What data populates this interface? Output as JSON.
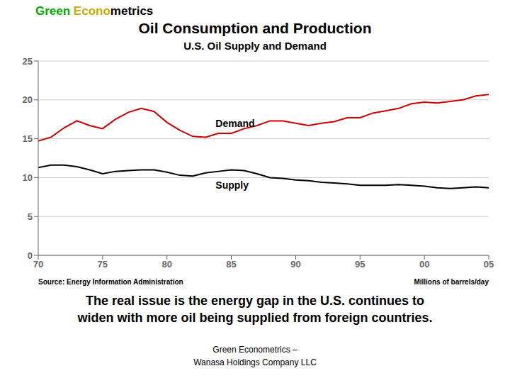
{
  "chart_data": {
    "type": "line",
    "title": "Oil Consumption and Production",
    "subtitle": "U.S. Oil Supply and Demand",
    "header": [
      {
        "text": "Green ",
        "color": "#00aa00"
      },
      {
        "text": "Econo",
        "color": "#ccaa00"
      },
      {
        "text": "metrics",
        "color": "#000000"
      }
    ],
    "source": "Source: Energy Information Administration",
    "unit": "Millions of barrels/day",
    "caption": [
      "The real issue is the energy gap in the U.S. continues to",
      "widen with more oil being supplied from foreign countries."
    ],
    "footer": [
      "Green Econometrics –",
      "Wanasa Holdings Company LLC"
    ],
    "x": [
      70,
      71,
      72,
      73,
      74,
      75,
      76,
      77,
      78,
      79,
      80,
      81,
      82,
      83,
      84,
      85,
      86,
      87,
      88,
      89,
      90,
      91,
      92,
      93,
      94,
      95,
      96,
      97,
      98,
      99,
      100,
      101,
      102,
      103,
      104,
      105
    ],
    "series": [
      {
        "color": "#cc0000",
        "values": [
          14.7,
          15.2,
          16.4,
          17.3,
          16.7,
          16.3,
          17.5,
          18.4,
          18.9,
          18.5,
          17.1,
          16.1,
          15.3,
          15.2,
          15.7,
          15.7,
          16.3,
          16.7,
          17.3,
          17.3,
          17.0,
          16.7,
          17.0,
          17.2,
          17.7,
          17.7,
          18.3,
          18.6,
          18.9,
          19.5,
          19.7,
          19.6,
          19.8,
          20.0,
          20.5,
          20.7
        ]
      },
      {
        "color": "#000000",
        "values": [
          11.3,
          11.6,
          11.6,
          11.4,
          11.0,
          10.5,
          10.8,
          10.9,
          11.0,
          11.0,
          10.7,
          10.3,
          10.2,
          10.6,
          10.8,
          11.0,
          10.9,
          10.5,
          10.0,
          9.9,
          9.7,
          9.6,
          9.4,
          9.3,
          9.2,
          9.0,
          9.0,
          9.0,
          9.1,
          9.0,
          8.9,
          8.7,
          8.6,
          8.7,
          8.8,
          8.7
        ]
      }
    ],
    "annotations": [
      {
        "text": "Demand",
        "x": 83.5,
        "y": 17.0
      },
      {
        "text": "Supply",
        "x": 83.5,
        "y": 9.0
      }
    ],
    "xlim": [
      70,
      105
    ],
    "ylim": [
      0,
      25
    ],
    "xticks": [
      70,
      75,
      80,
      85,
      90,
      95,
      {
        "value": 100,
        "label": "00"
      },
      {
        "value": 105,
        "label": "05"
      }
    ],
    "yticks": [
      0,
      5,
      10,
      15,
      20,
      25
    ],
    "grid": "y"
  }
}
